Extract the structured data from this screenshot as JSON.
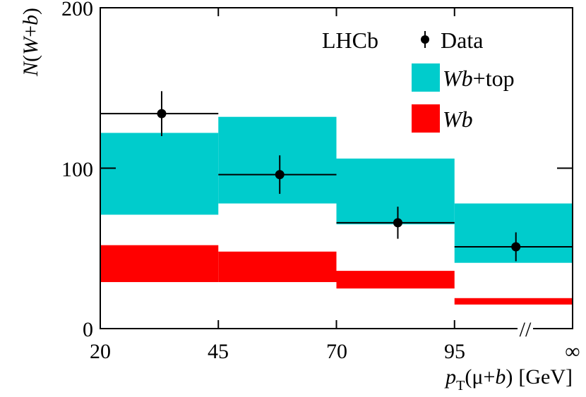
{
  "chart_data": {
    "type": "bar",
    "title": "",
    "experiment_label": "LHCb",
    "xlabel": {
      "p": "p",
      "sub": "T",
      "open": "(",
      "mu": "μ",
      "plus": "+",
      "b": "b",
      "close": ")",
      "unit": "[GeV]"
    },
    "ylabel": {
      "N": "N",
      "open": "(",
      "W": "W",
      "plus": "+",
      "b": "b",
      "close": ")"
    },
    "x_ticks": [
      "20",
      "45",
      "70",
      "95",
      "∞"
    ],
    "x_break_marker": "//",
    "y_ticks": [
      "0",
      "100",
      "200"
    ],
    "ylim": [
      0,
      200
    ],
    "bins": [
      {
        "low": "20",
        "high": "45"
      },
      {
        "low": "45",
        "high": "70"
      },
      {
        "low": "70",
        "high": "95"
      },
      {
        "low": "95",
        "high": "∞"
      }
    ],
    "series": [
      {
        "name": "Wb+top",
        "label_main": "Wb",
        "label_suffix": "+top",
        "kind": "band",
        "color": "#00CCCC",
        "low": [
          71,
          78,
          65,
          41
        ],
        "high": [
          122,
          132,
          106,
          78
        ]
      },
      {
        "name": "Wb",
        "label_main": "Wb",
        "label_suffix": "",
        "kind": "band",
        "color": "#FF0000",
        "low": [
          29,
          29,
          25,
          15
        ],
        "high": [
          52,
          48,
          36,
          19
        ]
      },
      {
        "name": "Data",
        "label_main": "Data",
        "kind": "points",
        "color": "#000000",
        "values": [
          134,
          96,
          66,
          51
        ],
        "errors": [
          14,
          12,
          10,
          9
        ],
        "x_centers": [
          33,
          58,
          83,
          108
        ]
      }
    ],
    "legend_position": "top-right",
    "grid": false
  }
}
